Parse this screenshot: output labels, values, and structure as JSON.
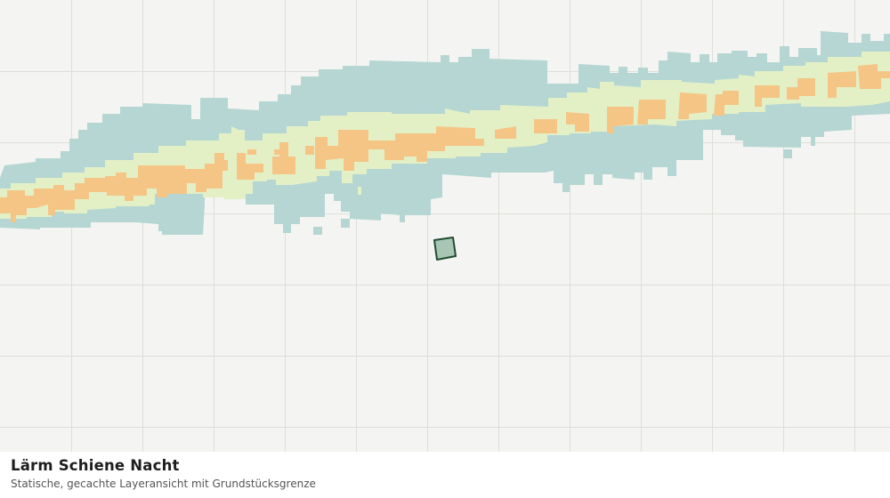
{
  "map": {
    "layer_name": "Lärm Schiene Nacht",
    "colors": {
      "background": "#f4f5f2",
      "grid": "#dddfdb",
      "noise_low": "#b5d6d2",
      "noise_mid": "#e3f0c6",
      "noise_high": "#f5c586",
      "parcel_fill": "#a8c6b4",
      "parcel_stroke": "#1f4d30"
    }
  },
  "caption": {
    "title": "Lärm Schiene Nacht",
    "subtitle": "Statische, gecachte Layeransicht mit Grundstücksgrenze"
  }
}
